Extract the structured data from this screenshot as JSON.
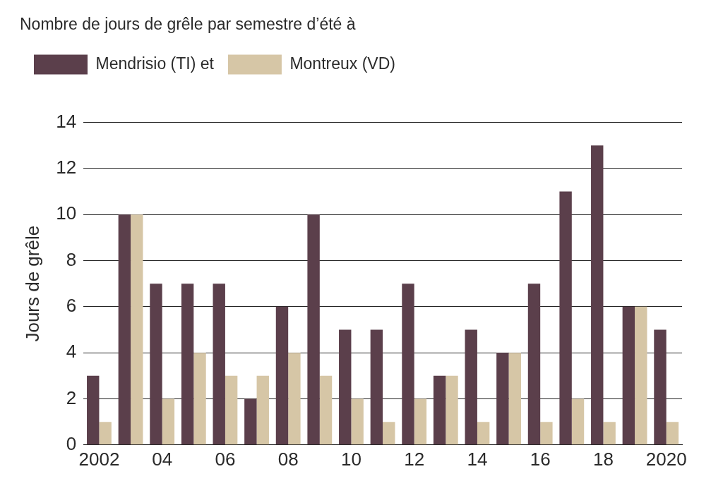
{
  "chart_data": {
    "type": "bar",
    "title": "Nombre de jours de grêle par semestre d’été à",
    "y_label": "Jours de grêle",
    "categories": [
      "2002",
      null,
      "04",
      null,
      "06",
      null,
      "08",
      null,
      "10",
      null,
      "12",
      null,
      "14",
      null,
      "16",
      null,
      "18",
      null,
      "2020"
    ],
    "series": [
      {
        "name": "Mendrisio (TI) et",
        "color": "#5b3f4b",
        "values": [
          3,
          10,
          7,
          7,
          7,
          2,
          6,
          10,
          5,
          5,
          7,
          3,
          5,
          4,
          7,
          11,
          13,
          6,
          5
        ]
      },
      {
        "name": "Montreux (VD)",
        "color": "#d6c6a6",
        "values": [
          1,
          10,
          2,
          4,
          3,
          3,
          4,
          3,
          2,
          1,
          2,
          3,
          1,
          4,
          1,
          2,
          1,
          6,
          1
        ]
      }
    ],
    "ylim": [
      0,
      14
    ],
    "yticks": [
      0,
      2,
      4,
      6,
      8,
      10,
      12,
      14
    ],
    "grid": true,
    "legend": "top-left"
  }
}
